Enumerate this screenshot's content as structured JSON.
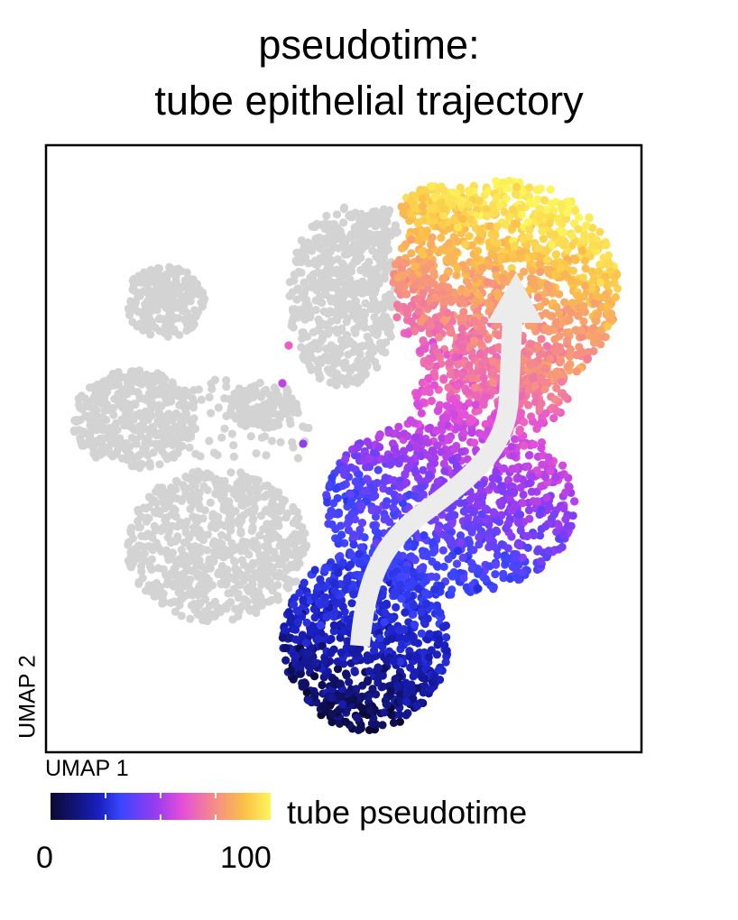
{
  "chart_data": {
    "type": "scatter",
    "title_lines": [
      "pseudotime:",
      "tube epithelial trajectory"
    ],
    "xlabel": "UMAP 1",
    "ylabel": "UMAP 2",
    "grid": false,
    "colorbar": {
      "label": "tube pseudotime",
      "min": 0,
      "max": 100,
      "min_label": "0",
      "max_label": "100",
      "colormap": [
        "#0a0830",
        "#1a1fc0",
        "#3a46ff",
        "#9b3bf0",
        "#e44fd9",
        "#f58a8a",
        "#fbc048",
        "#fcf65c"
      ]
    },
    "colors": {
      "unassigned": "#d3d3d3",
      "arrow": "#ececec",
      "frame": "#000000"
    },
    "annotation": "arrow along trajectory from low to high pseudotime"
  }
}
